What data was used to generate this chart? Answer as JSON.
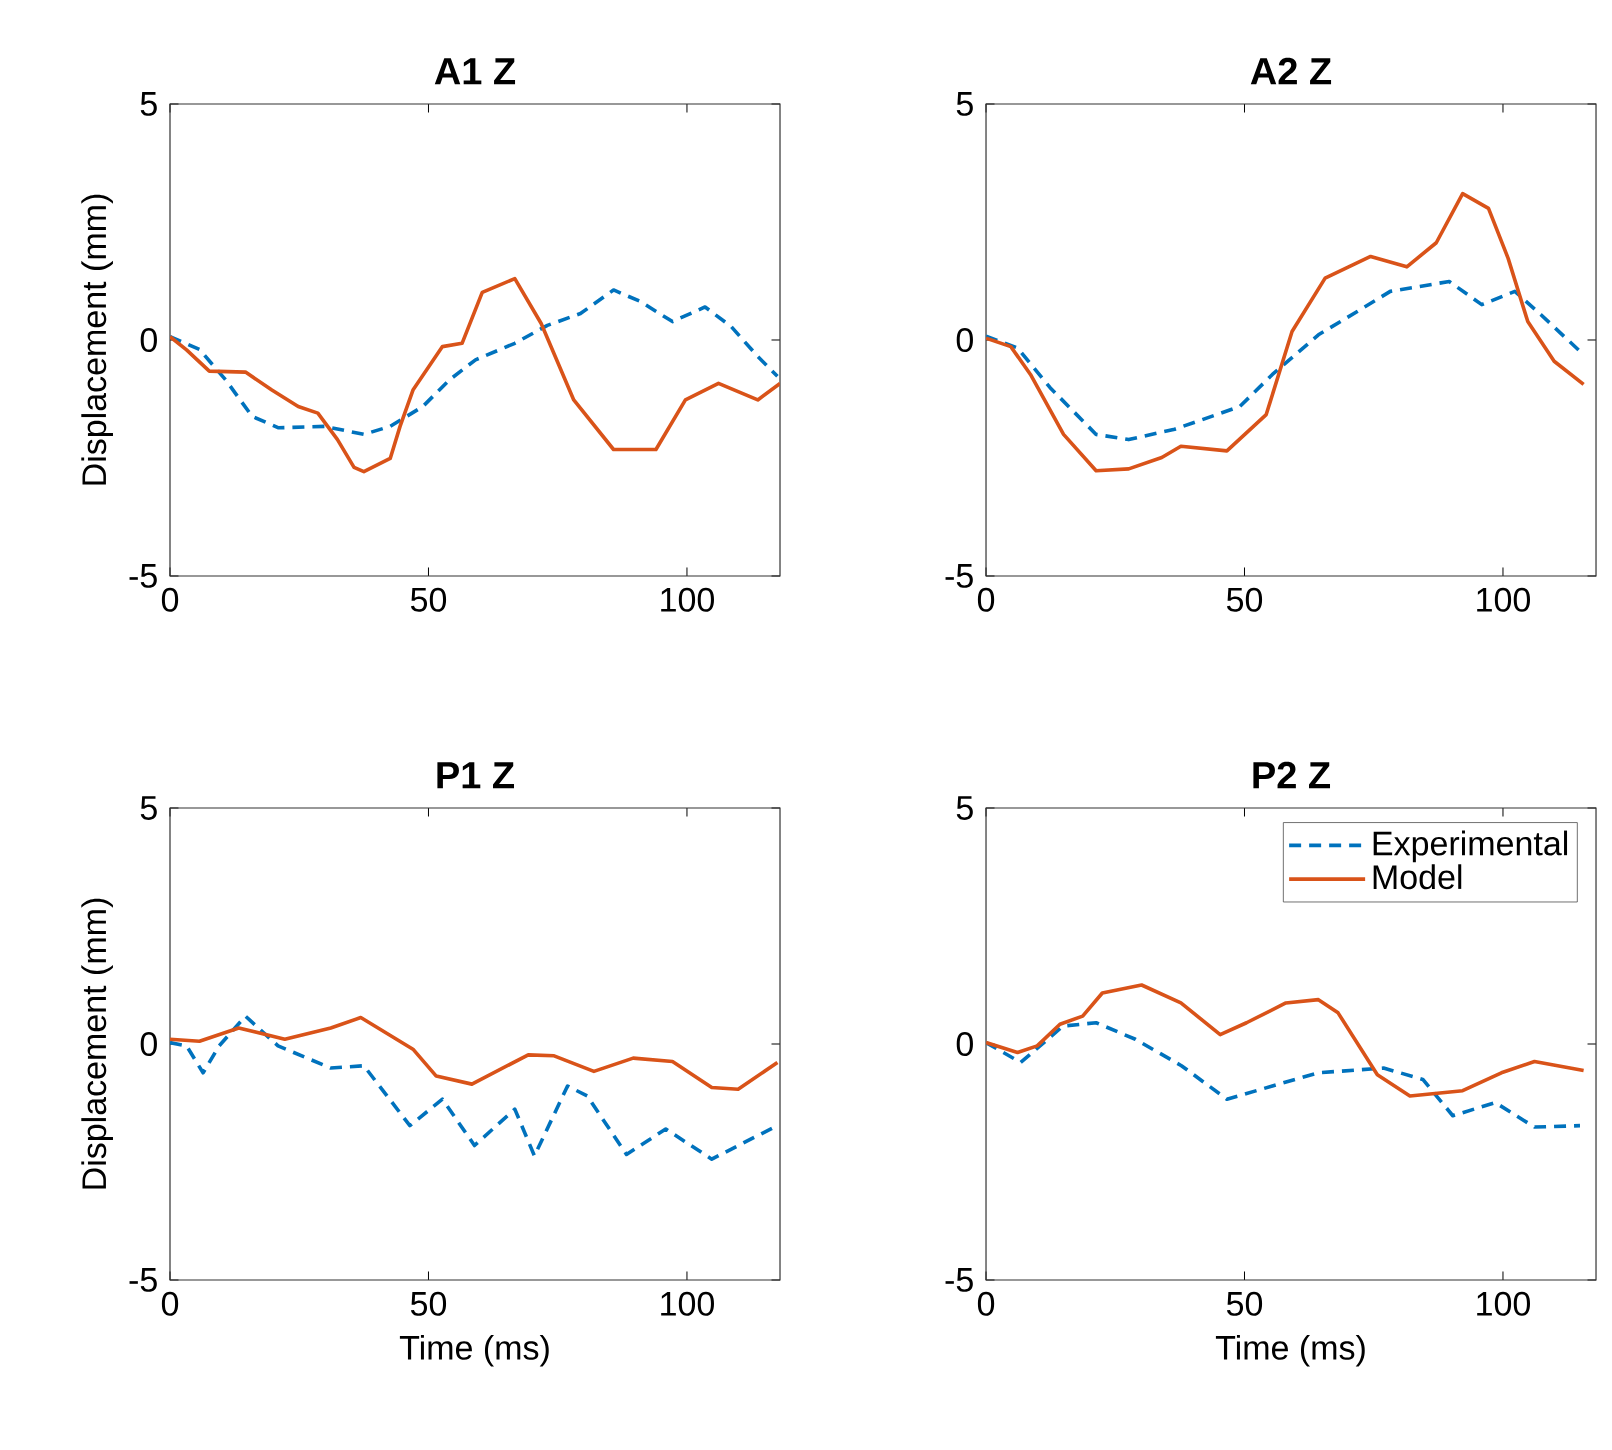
{
  "chart_data": [
    {
      "type": "line",
      "title": "A1 Z",
      "ylabel": "Displacement (mm)",
      "xlim": [
        0,
        118
      ],
      "xticks": [
        0,
        50,
        100
      ],
      "ylim": [
        -5,
        5
      ],
      "yticks": [
        -5,
        0,
        5
      ],
      "grid": false,
      "series": [
        {
          "color": "#0072bd",
          "line_style": "dashed",
          "x": [
            0,
            5.7,
            10.8,
            15.9,
            21,
            29.9,
            37.5,
            42.6,
            48.9,
            54,
            59.1,
            66.7,
            73,
            79.4,
            85.8,
            90.9,
            97.2,
            103.5,
            108.6,
            113.7,
            117.5
          ],
          "values": [
            0.07,
            -0.2,
            -0.85,
            -1.62,
            -1.86,
            -1.83,
            -2.0,
            -1.83,
            -1.41,
            -0.85,
            -0.42,
            -0.07,
            0.31,
            0.56,
            1.06,
            0.82,
            0.39,
            0.7,
            0.28,
            -0.35,
            -0.77
          ]
        },
        {
          "color": "#d95319",
          "line_style": "solid",
          "x": [
            0,
            3.2,
            7.6,
            14.6,
            19.7,
            24.8,
            28.6,
            32.4,
            35.6,
            37.5,
            42.6,
            44.5,
            47,
            52.7,
            56.5,
            60.4,
            66.7,
            71.8,
            78.1,
            85.8,
            94,
            99.7,
            106.1,
            113.7,
            118
          ],
          "values": [
            0.07,
            -0.21,
            -0.66,
            -0.68,
            -1.06,
            -1.41,
            -1.55,
            -2.11,
            -2.7,
            -2.79,
            -2.51,
            -1.83,
            -1.06,
            -0.14,
            -0.07,
            1.01,
            1.3,
            0.35,
            -1.27,
            -2.32,
            -2.32,
            -1.27,
            -0.92,
            -1.27,
            -0.92
          ]
        }
      ]
    },
    {
      "type": "line",
      "title": "A2 Z",
      "xlim": [
        0,
        118
      ],
      "xticks": [
        0,
        50,
        100
      ],
      "ylim": [
        -5,
        5
      ],
      "yticks": [
        -5,
        0,
        5
      ],
      "grid": false,
      "series": [
        {
          "color": "#0072bd",
          "line_style": "dashed",
          "x": [
            0,
            6.1,
            12.4,
            21.3,
            27.6,
            36.5,
            49.1,
            55.4,
            64.3,
            71.9,
            78.2,
            89.6,
            95.9,
            102.3,
            107.3,
            114.9
          ],
          "values": [
            0.08,
            -0.17,
            -1.01,
            -2.0,
            -2.11,
            -1.89,
            -1.41,
            -0.73,
            0.11,
            0.61,
            1.03,
            1.24,
            0.75,
            1.03,
            0.54,
            -0.24
          ]
        },
        {
          "color": "#d95319",
          "line_style": "solid",
          "x": [
            0,
            4.8,
            8.6,
            15,
            21.3,
            27.6,
            34,
            37.7,
            46.6,
            54.2,
            59.2,
            65.6,
            74.4,
            81.4,
            87.1,
            92.2,
            97.2,
            101,
            104.8,
            109.9,
            115.6
          ],
          "values": [
            0.04,
            -0.14,
            -0.73,
            -2.0,
            -2.77,
            -2.73,
            -2.49,
            -2.25,
            -2.35,
            -1.58,
            0.18,
            1.31,
            1.77,
            1.55,
            2.06,
            3.1,
            2.79,
            1.73,
            0.39,
            -0.45,
            -0.94
          ]
        }
      ]
    },
    {
      "type": "line",
      "title": "P1 Z",
      "xlabel": "Time (ms)",
      "ylabel": "Displacement (mm)",
      "xlim": [
        0,
        118
      ],
      "xticks": [
        0,
        50,
        100
      ],
      "ylim": [
        -5,
        5
      ],
      "yticks": [
        -5,
        0,
        5
      ],
      "grid": false,
      "series": [
        {
          "color": "#0072bd",
          "line_style": "dashed",
          "x": [
            0,
            3.2,
            6.4,
            9.5,
            14.6,
            20.9,
            31.1,
            37.5,
            46.4,
            52.7,
            58.9,
            66.7,
            70.5,
            76.9,
            80.7,
            88.3,
            95.9,
            104.8,
            111.2,
            117.5
          ],
          "values": [
            0.03,
            -0.04,
            -0.61,
            -0.04,
            0.59,
            -0.04,
            -0.51,
            -0.46,
            -1.73,
            -1.17,
            -2.15,
            -1.38,
            -2.37,
            -0.89,
            -1.1,
            -2.34,
            -1.8,
            -2.44,
            -2.08,
            -1.73
          ]
        },
        {
          "color": "#d95319",
          "line_style": "solid",
          "x": [
            0,
            5.7,
            13.3,
            22.2,
            31.1,
            36.9,
            47,
            51.5,
            58.4,
            69.3,
            74.3,
            82,
            89.6,
            97.2,
            104.8,
            109.9,
            117.5
          ],
          "values": [
            0.1,
            0.06,
            0.34,
            0.1,
            0.34,
            0.56,
            -0.11,
            -0.68,
            -0.85,
            -0.23,
            -0.25,
            -0.58,
            -0.3,
            -0.37,
            -0.92,
            -0.96,
            -0.39
          ]
        }
      ]
    },
    {
      "type": "line",
      "title": "P2 Z",
      "xlabel": "Time (ms)",
      "xlim": [
        0,
        118
      ],
      "xticks": [
        0,
        50,
        100
      ],
      "ylim": [
        -5,
        5
      ],
      "yticks": [
        -5,
        0,
        5
      ],
      "grid": false,
      "legend": "top right",
      "series": [
        {
          "name": "Experimental",
          "color": "#0072bd",
          "line_style": "dashed",
          "x": [
            0,
            6.7,
            14.9,
            21.3,
            28.9,
            37.8,
            46.6,
            55.4,
            64.3,
            76.9,
            84.5,
            90.3,
            98.5,
            106.1,
            114.9
          ],
          "values": [
            0.03,
            -0.39,
            0.38,
            0.45,
            0.1,
            -0.46,
            -1.17,
            -0.89,
            -0.61,
            -0.51,
            -0.75,
            -1.52,
            -1.24,
            -1.76,
            -1.73
          ]
        },
        {
          "name": "Model",
          "color": "#d95319",
          "line_style": "solid",
          "x": [
            0,
            6.1,
            9.9,
            14.3,
            18.7,
            22.5,
            30.1,
            37.7,
            45.3,
            50.4,
            58,
            64.3,
            68.1,
            75.7,
            82,
            92.2,
            99.7,
            106.1,
            115.6
          ],
          "values": [
            0.03,
            -0.18,
            -0.04,
            0.42,
            0.59,
            1.08,
            1.25,
            0.87,
            0.2,
            0.45,
            0.87,
            0.94,
            0.66,
            -0.65,
            -1.1,
            -0.99,
            -0.61,
            -0.37,
            -0.56
          ]
        }
      ]
    }
  ]
}
